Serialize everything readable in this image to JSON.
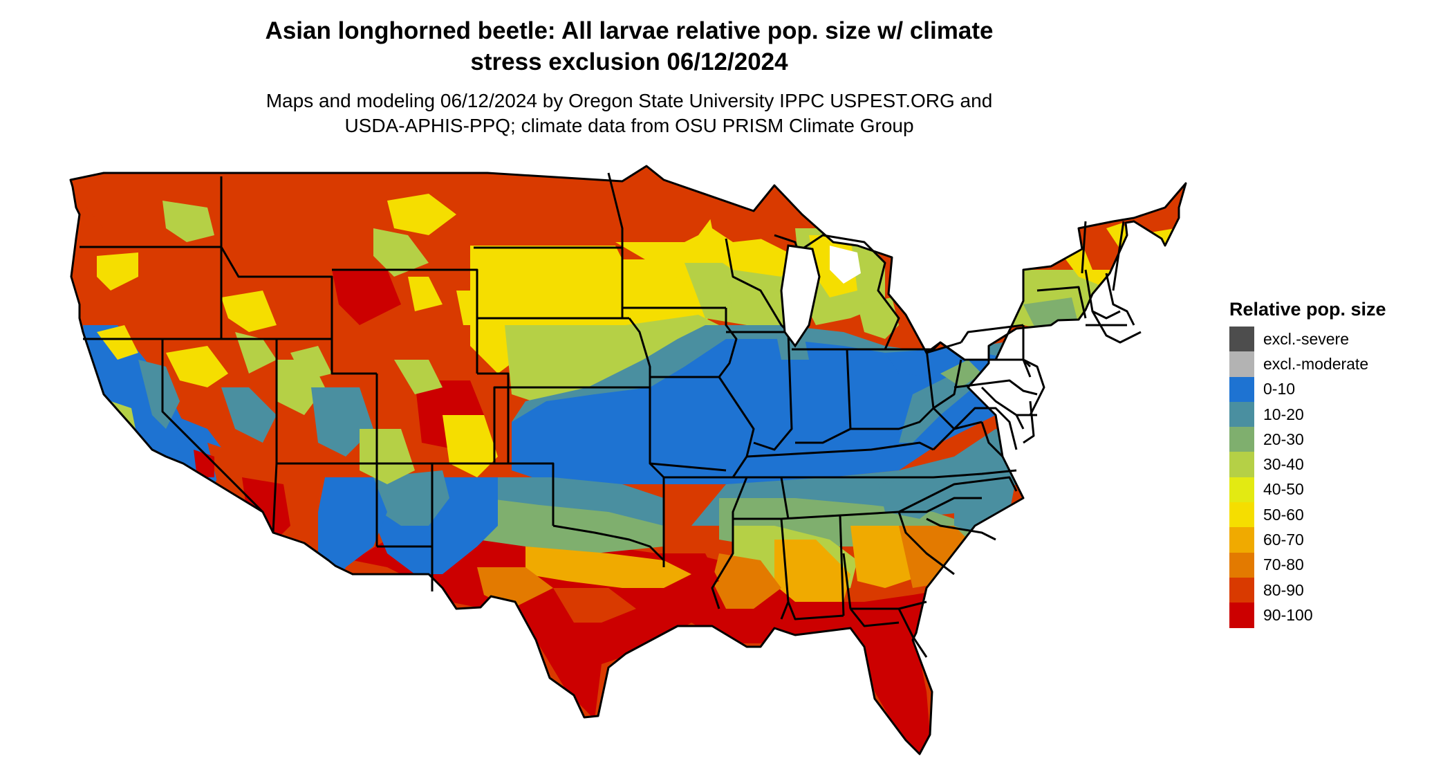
{
  "title": {
    "line1": "Asian longhorned beetle: All larvae relative pop. size w/ climate",
    "line2": "stress exclusion 06/12/2024"
  },
  "subtitle": {
    "line1": "Maps and modeling 06/12/2024 by Oregon State University IPPC USPEST.ORG and",
    "line2": "USDA-APHIS-PPQ; climate data from OSU PRISM Climate Group"
  },
  "legend": {
    "title": "Relative pop. size",
    "items": [
      {
        "label": "excl.-severe",
        "color": "#4d4d4d"
      },
      {
        "label": "excl.-moderate",
        "color": "#b3b3b3"
      },
      {
        "label": "0-10",
        "color": "#1e73d2"
      },
      {
        "label": "10-20",
        "color": "#4a8fa0"
      },
      {
        "label": "20-30",
        "color": "#7faf6e"
      },
      {
        "label": "30-40",
        "color": "#b5d046"
      },
      {
        "label": "40-50",
        "color": "#e3ea12"
      },
      {
        "label": "50-60",
        "color": "#f5de00"
      },
      {
        "label": "60-70",
        "color": "#f0aa00"
      },
      {
        "label": "70-80",
        "color": "#e37a00"
      },
      {
        "label": "80-90",
        "color": "#d93a00"
      },
      {
        "label": "90-100",
        "color": "#cc0000"
      }
    ]
  }
}
